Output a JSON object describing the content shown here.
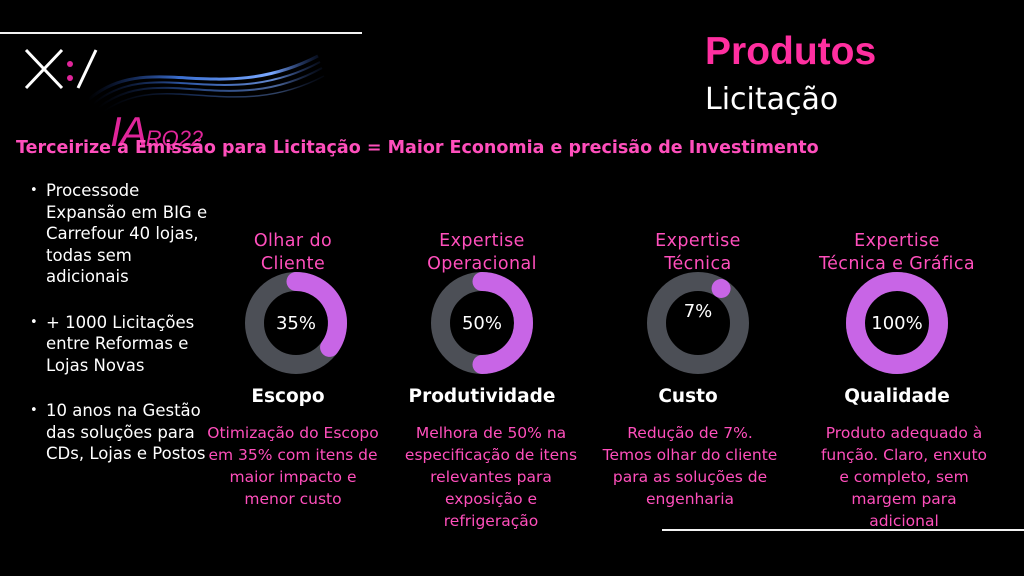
{
  "logo": {
    "ia": "IA",
    "rq": "RQ22"
  },
  "header": {
    "title": "Produtos",
    "subtitle": "Licitação"
  },
  "tagline": "Terceirize a Emissão para Licitação  = Maior Economia e precisão de Investimento",
  "bullets": [
    "Processode Expansão em BIG e Carrefour 40 lojas, todas sem adicionais",
    "+ 1000 Licitações entre Reformas e Lojas Novas",
    "10 anos na Gestão das soluções para CDs, Lojas e Postos"
  ],
  "colors": {
    "accent": "#ff2fa0",
    "ring_fill": "#c865e6",
    "ring_track": "#4c4f56"
  },
  "cards": [
    {
      "heading": "Olhar do\nCliente",
      "percent": 35,
      "percent_label": "35%",
      "metric": "Escopo",
      "description": "Otimização do Escopo em 35% com itens de maior impacto e menor custo"
    },
    {
      "heading": "Expertise\nOperacional",
      "percent": 50,
      "percent_label": "50%",
      "metric": "Produtividade",
      "description": "Melhora de 50% na especificação de itens relevantes para exposição e refrigeração"
    },
    {
      "heading": "Expertise\nTécnica",
      "percent": 7,
      "percent_label": "7%",
      "metric": "Custo",
      "description": "Redução de 7%. Temos olhar do cliente para as soluções de engenharia"
    },
    {
      "heading": "Expertise\nTécnica e Gráfica",
      "percent": 100,
      "percent_label": "100%",
      "metric": "Qualidade",
      "description": "Produto adequado à função. Claro, enxuto e completo, sem margem para adicional"
    }
  ]
}
